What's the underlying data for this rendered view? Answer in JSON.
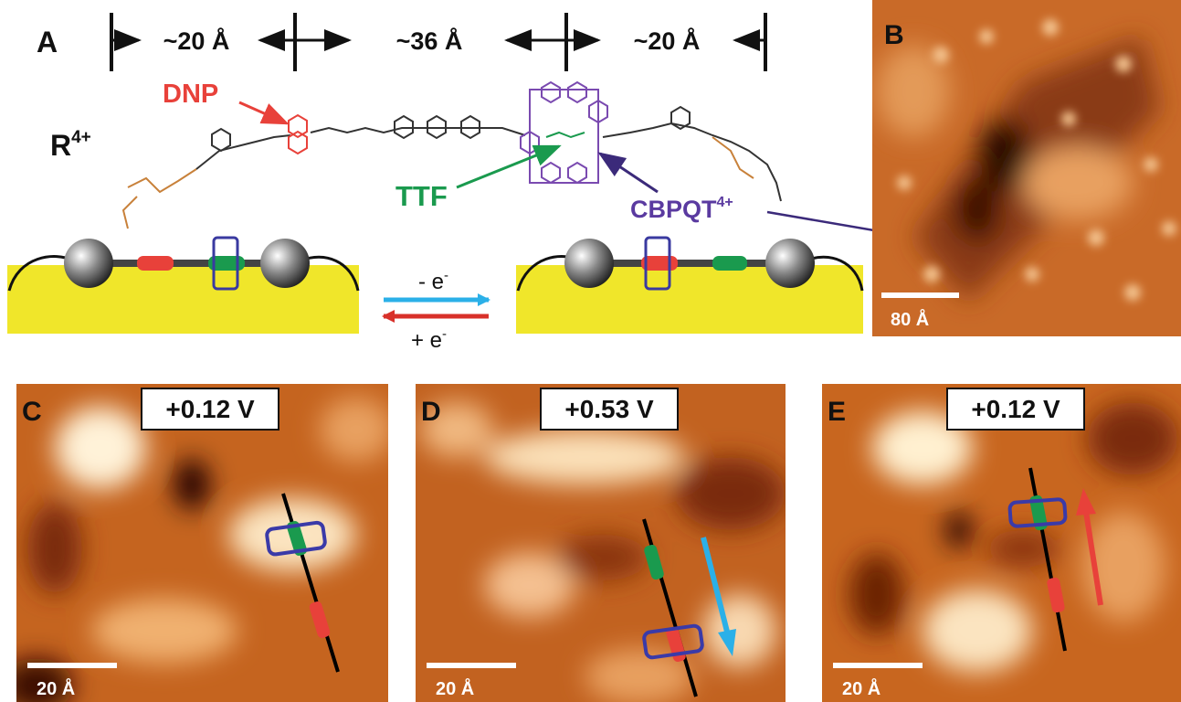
{
  "panel_a": {
    "label": "A",
    "spacings": [
      "~20 Å",
      "~36 Å",
      "~20 Å"
    ],
    "molecule": {
      "base": "R",
      "sup": "4+"
    },
    "dnp": "DNP",
    "ttf": "TTF",
    "cbpqt": {
      "base": "CBPQT",
      "sup": "4+"
    },
    "oxidation": {
      "base": "- e",
      "sup": "-"
    },
    "reduction": {
      "base": "+ e",
      "sup": "-"
    }
  },
  "panel_b": {
    "label": "B",
    "scale_bar": "80 Å"
  },
  "panels": [
    {
      "label": "C",
      "voltage": "+0.12 V",
      "scale_bar": "20 Å"
    },
    {
      "label": "D",
      "voltage": "+0.53 V",
      "scale_bar": "20 Å"
    },
    {
      "label": "E",
      "voltage": "+0.12 V",
      "scale_bar": "20 Å"
    }
  ]
}
